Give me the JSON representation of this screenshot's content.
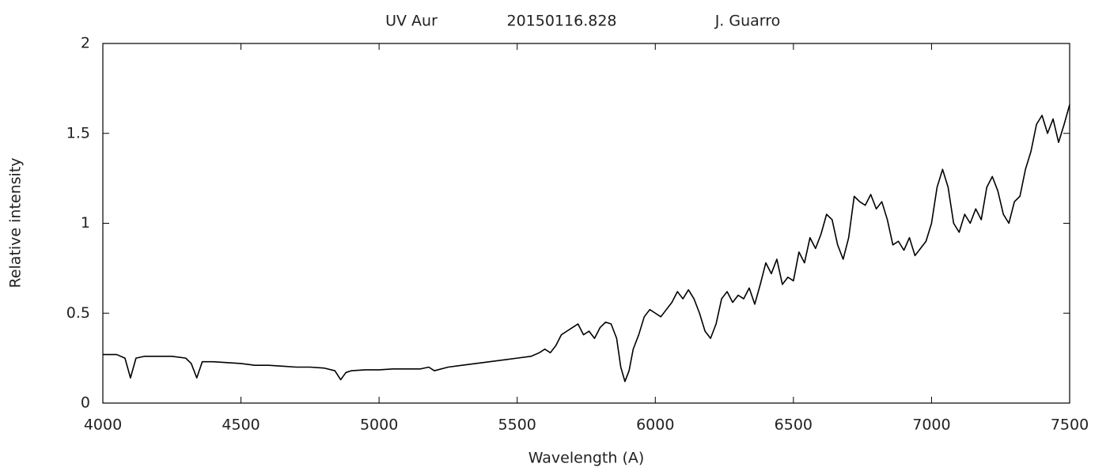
{
  "chart_data": {
    "type": "line",
    "title": "UV Aur",
    "date": "20150116.828",
    "observer": "J. Guarro",
    "xlabel": "Wavelength (A)",
    "ylabel": "Relative intensity",
    "color": "#000000",
    "x": [
      4000,
      4050,
      4080,
      4100,
      4120,
      4150,
      4200,
      4250,
      4300,
      4320,
      4340,
      4360,
      4400,
      4450,
      4500,
      4550,
      4600,
      4650,
      4700,
      4750,
      4800,
      4840,
      4861,
      4880,
      4900,
      4950,
      5000,
      5050,
      5100,
      5150,
      5180,
      5200,
      5250,
      5300,
      5350,
      5400,
      5450,
      5500,
      5550,
      5580,
      5600,
      5620,
      5640,
      5660,
      5680,
      5700,
      5720,
      5740,
      5760,
      5780,
      5800,
      5820,
      5840,
      5860,
      5875,
      5890,
      5905,
      5920,
      5940,
      5960,
      5980,
      6000,
      6020,
      6040,
      6060,
      6080,
      6100,
      6120,
      6140,
      6160,
      6180,
      6200,
      6220,
      6240,
      6260,
      6280,
      6300,
      6320,
      6340,
      6360,
      6380,
      6400,
      6420,
      6440,
      6460,
      6480,
      6500,
      6520,
      6540,
      6560,
      6580,
      6600,
      6620,
      6640,
      6660,
      6680,
      6700,
      6720,
      6740,
      6760,
      6780,
      6800,
      6820,
      6840,
      6860,
      6880,
      6900,
      6920,
      6940,
      6960,
      6980,
      7000,
      7020,
      7040,
      7060,
      7080,
      7100,
      7120,
      7140,
      7160,
      7180,
      7200,
      7220,
      7240,
      7260,
      7280,
      7300,
      7320,
      7340,
      7360,
      7380,
      7400,
      7420,
      7440,
      7460,
      7480,
      7500
    ],
    "values": [
      0.27,
      0.27,
      0.25,
      0.14,
      0.25,
      0.26,
      0.26,
      0.26,
      0.25,
      0.22,
      0.14,
      0.23,
      0.23,
      0.225,
      0.22,
      0.21,
      0.21,
      0.205,
      0.2,
      0.2,
      0.195,
      0.18,
      0.13,
      0.17,
      0.18,
      0.185,
      0.185,
      0.19,
      0.19,
      0.19,
      0.2,
      0.18,
      0.2,
      0.21,
      0.22,
      0.23,
      0.24,
      0.25,
      0.26,
      0.28,
      0.3,
      0.28,
      0.32,
      0.38,
      0.4,
      0.42,
      0.44,
      0.38,
      0.4,
      0.36,
      0.42,
      0.45,
      0.44,
      0.36,
      0.2,
      0.12,
      0.18,
      0.3,
      0.38,
      0.48,
      0.52,
      0.5,
      0.48,
      0.52,
      0.56,
      0.62,
      0.58,
      0.63,
      0.58,
      0.5,
      0.4,
      0.36,
      0.44,
      0.58,
      0.62,
      0.56,
      0.6,
      0.58,
      0.64,
      0.55,
      0.66,
      0.78,
      0.72,
      0.8,
      0.66,
      0.7,
      0.68,
      0.84,
      0.78,
      0.92,
      0.86,
      0.94,
      1.05,
      1.02,
      0.88,
      0.8,
      0.92,
      1.15,
      1.12,
      1.1,
      1.16,
      1.08,
      1.12,
      1.02,
      0.88,
      0.9,
      0.85,
      0.92,
      0.82,
      0.86,
      0.9,
      1.0,
      1.2,
      1.3,
      1.2,
      1.0,
      0.95,
      1.05,
      1.0,
      1.08,
      1.02,
      1.2,
      1.26,
      1.18,
      1.05,
      1.0,
      1.12,
      1.15,
      1.3,
      1.4,
      1.55,
      1.6,
      1.5,
      1.58,
      1.45,
      1.55,
      1.66
    ],
    "xlim": [
      4000,
      7500
    ],
    "xticks": [
      4000,
      4500,
      5000,
      5500,
      6000,
      6500,
      7000,
      7500
    ],
    "ylim": [
      0,
      2
    ],
    "yticks": [
      0,
      0.5,
      1,
      1.5,
      2
    ]
  }
}
